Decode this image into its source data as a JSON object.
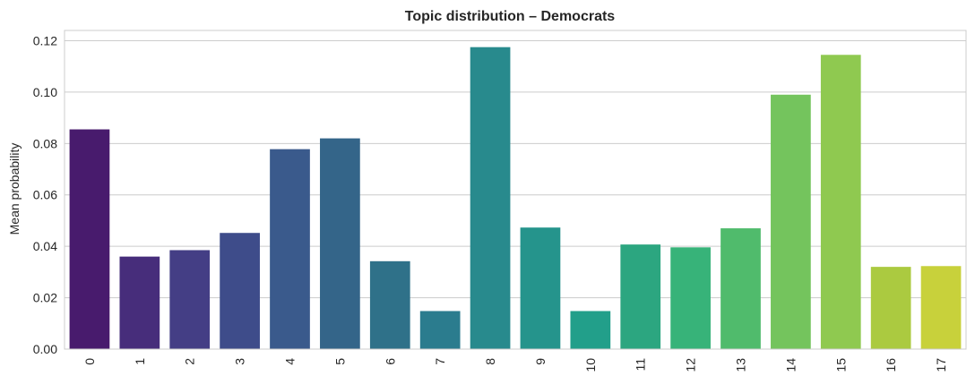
{
  "chart_data": {
    "type": "bar",
    "title": "Topic distribution – Democrats",
    "xlabel": "",
    "ylabel": "Mean probability",
    "categories": [
      "0",
      "1",
      "2",
      "3",
      "4",
      "5",
      "6",
      "7",
      "8",
      "9",
      "10",
      "11",
      "12",
      "13",
      "14",
      "15",
      "16",
      "17"
    ],
    "values": [
      0.0855,
      0.036,
      0.0385,
      0.0452,
      0.0778,
      0.082,
      0.0342,
      0.0148,
      0.1175,
      0.0473,
      0.0148,
      0.0407,
      0.0396,
      0.047,
      0.099,
      0.1145,
      0.032,
      0.0323
    ],
    "ylim": [
      0,
      0.124
    ],
    "yticks": [
      0.0,
      0.02,
      0.04,
      0.06,
      0.08,
      0.1,
      0.12
    ],
    "ytick_labels": [
      "0.00",
      "0.02",
      "0.04",
      "0.06",
      "0.08",
      "0.10",
      "0.12"
    ],
    "grid": "y",
    "legend": "none",
    "colors": [
      "#481b6d",
      "#472d7b",
      "#443e85",
      "#3e4c8a",
      "#3a5a8c",
      "#346589",
      "#2f7189",
      "#2b7c8e",
      "#288a8d",
      "#25948c",
      "#229f8a",
      "#2ca680",
      "#37b379",
      "#50bb6c",
      "#74c45d",
      "#8fc950",
      "#abca40",
      "#c8d13b"
    ]
  }
}
